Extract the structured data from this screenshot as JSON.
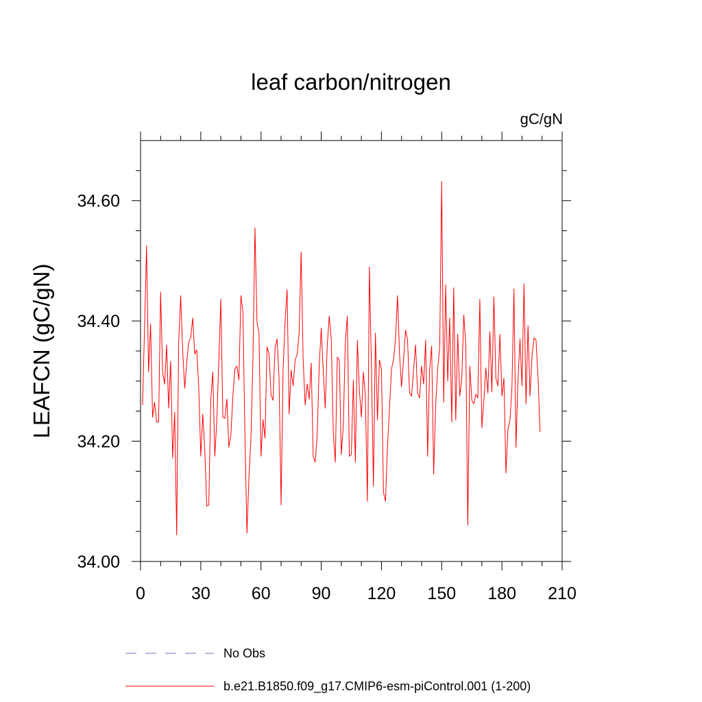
{
  "chart_data": {
    "type": "line",
    "title": "leaf carbon/nitrogen",
    "units": "gC/gN",
    "ylabel": "LEAFCN  (gC/gN)",
    "xlim": [
      0,
      210
    ],
    "ylim": [
      34.0,
      34.7
    ],
    "xticks": [
      0,
      30,
      60,
      90,
      120,
      150,
      180,
      210
    ],
    "yticks": [
      34.0,
      34.2,
      34.4,
      34.6
    ],
    "ytick_labels": [
      "34.00",
      "34.20",
      "34.40",
      "34.60"
    ],
    "grid": false,
    "legend": [
      {
        "name": "No Obs",
        "color": "#7070b8",
        "dashed": true
      },
      {
        "name": "b.e21.B1850.f09_g17.CMIP6-esm-piControl.001 (1-200)",
        "color": "#ff0000",
        "dashed": false
      }
    ],
    "series": [
      {
        "name": "b.e21.B1850.f09_g17.CMIP6-esm-piControl.001 (1-200)",
        "color": "#ff0000",
        "x_start": 1,
        "values": [
          34.26,
          34.39,
          34.525,
          34.315,
          34.395,
          34.24,
          34.265,
          34.232,
          34.232,
          34.448,
          34.315,
          34.295,
          34.36,
          34.255,
          34.333,
          34.172,
          34.248,
          34.044,
          34.365,
          34.442,
          34.35,
          34.288,
          34.33,
          34.365,
          34.372,
          34.405,
          34.345,
          34.352,
          34.29,
          34.175,
          34.245,
          34.185,
          34.092,
          34.094,
          34.27,
          34.315,
          34.175,
          34.235,
          34.335,
          34.436,
          34.24,
          34.238,
          34.27,
          34.19,
          34.21,
          34.275,
          34.32,
          34.325,
          34.302,
          34.442,
          34.415,
          34.21,
          34.047,
          34.14,
          34.205,
          34.34,
          34.555,
          34.398,
          34.38,
          34.175,
          34.236,
          34.205,
          34.357,
          34.345,
          34.277,
          34.268,
          34.355,
          34.37,
          34.305,
          34.094,
          34.318,
          34.4,
          34.452,
          34.245,
          34.318,
          34.292,
          34.335,
          34.344,
          34.38,
          34.515,
          34.335,
          34.26,
          34.295,
          34.27,
          34.33,
          34.175,
          34.165,
          34.21,
          34.325,
          34.388,
          34.318,
          34.255,
          34.36,
          34.408,
          34.37,
          34.215,
          34.165,
          34.34,
          34.335,
          34.178,
          34.225,
          34.365,
          34.408,
          34.175,
          34.178,
          34.302,
          34.165,
          34.368,
          34.285,
          34.24,
          34.315,
          34.275,
          34.1,
          34.49,
          34.325,
          34.125,
          34.38,
          34.235,
          34.335,
          34.32,
          34.115,
          34.1,
          34.19,
          34.255,
          34.32,
          34.335,
          34.37,
          34.442,
          34.345,
          34.29,
          34.335,
          34.385,
          34.368,
          34.28,
          34.275,
          34.32,
          34.36,
          34.28,
          34.272,
          34.325,
          34.295,
          34.368,
          34.175,
          34.32,
          34.358,
          34.145,
          34.26,
          34.32,
          34.355,
          34.632,
          34.265,
          34.46,
          34.3,
          34.405,
          34.232,
          34.455,
          34.235,
          34.378,
          34.275,
          34.305,
          34.41,
          34.36,
          34.06,
          34.325,
          34.268,
          34.262,
          34.278,
          34.272,
          34.436,
          34.222,
          34.268,
          34.322,
          34.28,
          34.382,
          34.282,
          34.44,
          34.305,
          34.292,
          34.378,
          34.275,
          34.305,
          34.147,
          34.22,
          34.235,
          34.29,
          34.453,
          34.19,
          34.302,
          34.37,
          34.292,
          34.462,
          34.262,
          34.392,
          34.275,
          34.342,
          34.372,
          34.368,
          34.305,
          34.215
        ]
      }
    ]
  }
}
